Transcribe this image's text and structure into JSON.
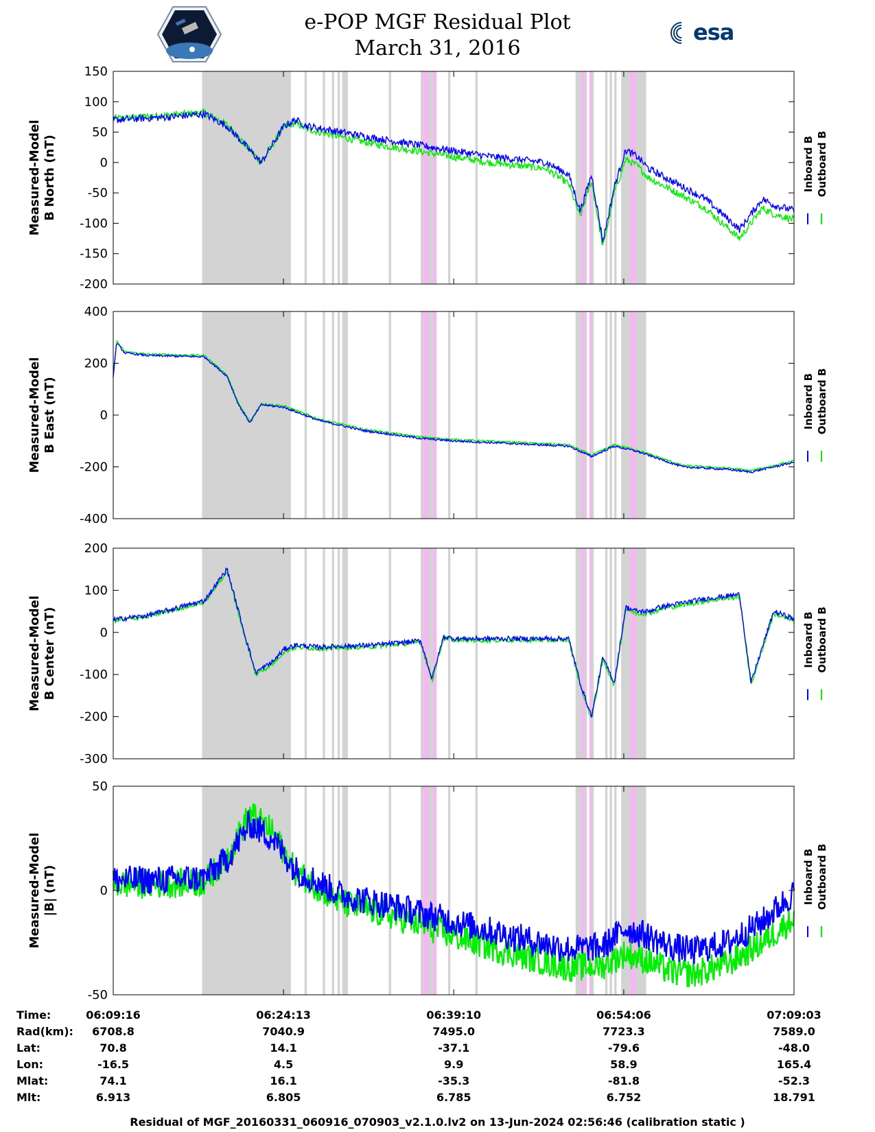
{
  "title": "e-POP MGF Residual Plot",
  "subtitle": "March 31, 2016",
  "logos": {
    "left": "cassiope-mission-patch-icon",
    "right": "esa-logo-icon",
    "right_text": "esa"
  },
  "colors": {
    "inboard": "#0000ff",
    "outboard": "#00ee00",
    "gray_band": "#d3d3d3",
    "pink_band": "#f5b8f0"
  },
  "legend": {
    "inboard": "Inboard B",
    "outboard": "Outboard B"
  },
  "chart_data": [
    {
      "type": "line",
      "ylabel_line1": "Measured-Model",
      "ylabel_line2": "B North (nT)",
      "ylim": [
        -200,
        150
      ],
      "yticks": [
        150,
        100,
        50,
        0,
        -50,
        -100,
        -150,
        -200
      ],
      "ytick_labels": [
        "150",
        "100",
        "50",
        "0",
        "-50",
        "-100",
        "-150",
        "-200"
      ],
      "x_minutes": [
        0,
        5,
        8,
        10,
        13,
        15,
        16,
        17,
        20,
        23,
        28,
        33,
        38,
        40,
        41,
        42,
        43,
        44,
        45,
        46,
        47,
        48,
        49,
        50,
        52,
        55,
        57,
        58,
        59,
        60
      ],
      "series": [
        {
          "name": "Inboard B",
          "values": [
            70,
            75,
            80,
            60,
            0,
            60,
            70,
            60,
            50,
            40,
            25,
            10,
            0,
            -20,
            -80,
            -20,
            -130,
            -40,
            20,
            10,
            -10,
            -20,
            -30,
            -40,
            -60,
            -110,
            -60,
            -70,
            -75,
            -80
          ]
        },
        {
          "name": "Outboard B",
          "values": [
            72,
            78,
            82,
            62,
            0,
            58,
            65,
            55,
            42,
            30,
            15,
            0,
            -10,
            -35,
            -90,
            -30,
            -140,
            -50,
            5,
            -5,
            -25,
            -35,
            -45,
            -55,
            -75,
            -125,
            -75,
            -85,
            -90,
            -95
          ]
        }
      ]
    },
    {
      "type": "line",
      "ylabel_line1": "Measured-Model",
      "ylabel_line2": "B East (nT)",
      "ylim": [
        -400,
        400
      ],
      "yticks": [
        400,
        200,
        0,
        -200,
        -400
      ],
      "ytick_labels": [
        "400",
        "200",
        "0",
        "-200",
        "-400"
      ],
      "x_minutes": [
        0,
        0.3,
        1,
        3,
        8,
        10,
        11,
        12,
        13,
        15,
        18,
        22,
        27,
        30,
        35,
        40,
        42,
        44,
        46,
        48,
        50,
        54,
        56,
        60
      ],
      "series": [
        {
          "name": "Inboard B",
          "values": [
            150,
            280,
            240,
            230,
            225,
            150,
            40,
            -30,
            40,
            30,
            -20,
            -60,
            -90,
            -100,
            -110,
            -120,
            -160,
            -120,
            -140,
            -170,
            -200,
            -210,
            -220,
            -180
          ]
        },
        {
          "name": "Outboard B",
          "values": [
            155,
            285,
            245,
            235,
            230,
            155,
            45,
            -25,
            45,
            35,
            -15,
            -55,
            -85,
            -95,
            -105,
            -115,
            -155,
            -115,
            -135,
            -165,
            -195,
            -205,
            -215,
            -175
          ]
        }
      ]
    },
    {
      "type": "line",
      "ylabel_line1": "Measured-Model",
      "ylabel_line2": "B Center (nT)",
      "ylim": [
        -300,
        200
      ],
      "yticks": [
        200,
        100,
        0,
        -100,
        -200,
        -300
      ],
      "ytick_labels": [
        "200",
        "100",
        "0",
        "-100",
        "-200",
        "-300"
      ],
      "x_minutes": [
        0,
        3,
        8,
        10,
        11.5,
        12.5,
        14,
        15,
        16,
        18,
        23,
        27,
        28,
        29,
        30,
        35,
        40,
        41,
        42,
        43,
        44,
        45,
        46,
        47,
        48,
        50,
        52,
        55,
        56,
        58,
        60
      ],
      "series": [
        {
          "name": "Inboard B",
          "values": [
            30,
            40,
            75,
            150,
            0,
            -95,
            -70,
            -40,
            -30,
            -35,
            -30,
            -20,
            -110,
            -10,
            -15,
            -15,
            -15,
            -120,
            -200,
            -60,
            -120,
            60,
            50,
            50,
            60,
            70,
            80,
            90,
            -120,
            50,
            30
          ]
        },
        {
          "name": "Outboard B",
          "values": [
            28,
            38,
            72,
            145,
            -5,
            -100,
            -75,
            -45,
            -35,
            -38,
            -33,
            -23,
            -115,
            -13,
            -18,
            -18,
            -18,
            -125,
            -205,
            -65,
            -125,
            55,
            45,
            45,
            55,
            65,
            75,
            85,
            -125,
            45,
            25
          ]
        }
      ]
    },
    {
      "type": "line",
      "ylabel_line1": "Measured-Model",
      "ylabel_line2": "|B| (nT)",
      "ylim": [
        -50,
        50
      ],
      "yticks": [
        50,
        0,
        -50
      ],
      "ytick_labels": [
        "50",
        "0",
        "-50"
      ],
      "x_minutes": [
        0,
        4,
        8,
        10,
        12,
        14,
        16,
        20,
        25,
        30,
        35,
        40,
        43,
        45,
        47,
        49,
        51,
        54,
        57,
        60
      ],
      "series": [
        {
          "name": "Inboard B",
          "values": [
            5,
            5,
            6,
            15,
            32,
            25,
            10,
            -2,
            -8,
            -15,
            -22,
            -28,
            -27,
            -18,
            -22,
            -27,
            -29,
            -25,
            -15,
            0
          ]
        },
        {
          "name": "Outboard B",
          "values": [
            3,
            3,
            4,
            16,
            37,
            28,
            9,
            -6,
            -13,
            -22,
            -30,
            -37,
            -36,
            -30,
            -34,
            -39,
            -40,
            -35,
            -25,
            -12
          ]
        }
      ]
    }
  ],
  "x_axis": {
    "start": "06:09:16",
    "end": "07:09:03",
    "tick_minutes": [
      0,
      14.95,
      29.9,
      44.83,
      59.78
    ]
  },
  "gray_bands": [
    [
      7.8,
      15.6
    ],
    [
      16.8,
      17.0
    ],
    [
      18.4,
      18.6
    ],
    [
      19.2,
      19.4
    ],
    [
      19.7,
      19.9
    ],
    [
      20.1,
      20.6
    ],
    [
      24.2,
      24.4
    ],
    [
      27.0,
      28.4
    ],
    [
      29.4,
      29.6
    ],
    [
      31.8,
      32.0
    ],
    [
      40.6,
      41.6
    ],
    [
      42.0,
      42.2
    ],
    [
      43.2,
      43.4
    ],
    [
      43.6,
      43.8
    ],
    [
      44.0,
      44.2
    ],
    [
      44.6,
      46.8
    ]
  ],
  "pink_bands": [
    [
      27.2,
      27.7
    ],
    [
      28.1,
      28.4
    ],
    [
      41.1,
      41.4
    ],
    [
      41.8,
      42.0
    ],
    [
      45.4,
      45.9
    ]
  ],
  "info_table": {
    "labels": [
      "Time:",
      "Rad(km):",
      "Lat:",
      "Lon:",
      "Mlat:",
      "Mlt:"
    ],
    "columns": [
      [
        "06:09:16",
        "6708.8",
        "70.8",
        "-16.5",
        "74.1",
        "6.913"
      ],
      [
        "06:24:13",
        "7040.9",
        "14.1",
        "4.5",
        "16.1",
        "6.805"
      ],
      [
        "06:39:10",
        "7495.0",
        "-37.1",
        "9.9",
        "-35.3",
        "6.785"
      ],
      [
        "06:54:06",
        "7723.3",
        "-79.6",
        "58.9",
        "-81.8",
        "6.752"
      ],
      [
        "07:09:03",
        "7589.0",
        "-48.0",
        "165.4",
        "-52.3",
        "18.791"
      ]
    ]
  },
  "footer": "Residual of MGF_20160331_060916_070903_v2.1.0.lv2 on 13-Jun-2024 02:56:46 (calibration static )"
}
